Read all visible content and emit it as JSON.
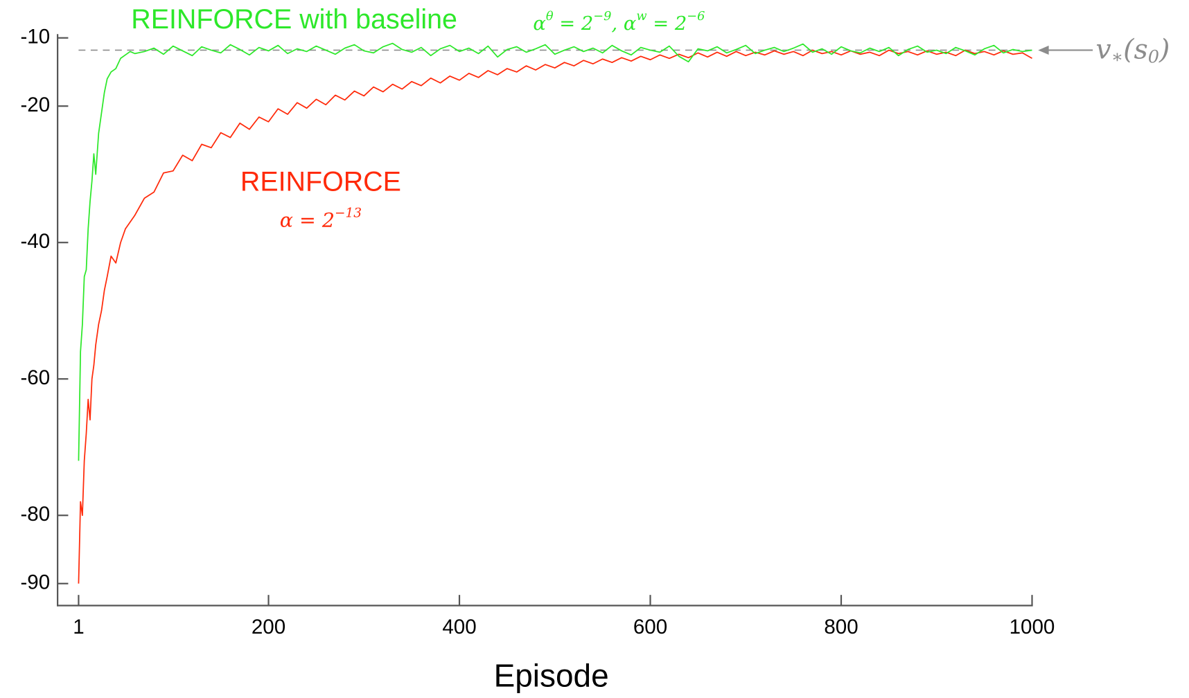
{
  "chart_data": {
    "type": "line",
    "x_label": "Episode",
    "x": [
      1,
      3,
      5,
      7,
      9,
      11,
      13,
      15,
      17,
      19,
      22,
      25,
      28,
      31,
      35,
      40,
      45,
      50,
      55,
      60,
      70,
      80,
      90,
      100,
      110,
      120,
      130,
      140,
      150,
      160,
      170,
      180,
      190,
      200,
      210,
      220,
      230,
      240,
      250,
      260,
      270,
      280,
      290,
      300,
      310,
      320,
      330,
      340,
      350,
      360,
      370,
      380,
      390,
      400,
      410,
      420,
      430,
      440,
      450,
      460,
      470,
      480,
      490,
      500,
      510,
      520,
      530,
      540,
      550,
      560,
      570,
      580,
      590,
      600,
      610,
      620,
      630,
      640,
      650,
      660,
      670,
      680,
      690,
      700,
      710,
      720,
      730,
      740,
      750,
      760,
      770,
      780,
      790,
      800,
      810,
      820,
      830,
      840,
      850,
      860,
      870,
      880,
      890,
      900,
      910,
      920,
      930,
      940,
      950,
      960,
      970,
      980,
      990,
      1000
    ],
    "series": [
      {
        "name": "REINFORCE with baseline",
        "color": "#2de82a",
        "params": [
          "α",
          "θ",
          " = 2",
          "−9",
          ",  α",
          "w",
          " = 2",
          "−6"
        ],
        "values": [
          -72,
          -56,
          -52,
          -45,
          -44,
          -38,
          -34,
          -31,
          -27,
          -30,
          -24,
          -21,
          -18,
          -16,
          -15,
          -14.5,
          -13,
          -12.5,
          -12,
          -12.3,
          -12.0,
          -11.5,
          -12.4,
          -11.2,
          -11.9,
          -12.6,
          -11.3,
          -11.8,
          -12.2,
          -11.0,
          -11.7,
          -12.5,
          -11.4,
          -11.9,
          -11.1,
          -12.3,
          -11.6,
          -12.0,
          -11.2,
          -11.8,
          -12.4,
          -11.5,
          -11.0,
          -11.9,
          -12.2,
          -11.3,
          -10.8,
          -11.7,
          -12.1,
          -11.4,
          -12.6,
          -11.6,
          -11.1,
          -12.0,
          -11.5,
          -12.3,
          -11.2,
          -12.8,
          -11.7,
          -11.3,
          -12.1,
          -11.6,
          -11.0,
          -12.4,
          -11.8,
          -11.3,
          -12.0,
          -11.5,
          -12.2,
          -11.1,
          -11.9,
          -12.5,
          -11.4,
          -11.8,
          -12.1,
          -11.2,
          -12.7,
          -13.5,
          -11.6,
          -11.9,
          -11.3,
          -12.2,
          -11.7,
          -11.1,
          -12.3,
          -11.8,
          -11.4,
          -12.0,
          -11.5,
          -10.9,
          -12.1,
          -11.6,
          -12.4,
          -11.3,
          -11.9,
          -12.2,
          -11.5,
          -12.0,
          -11.4,
          -12.6,
          -11.7,
          -11.2,
          -12.1,
          -11.8,
          -12.3,
          -11.4,
          -11.9,
          -12.5,
          -11.6,
          -11.1,
          -12.2,
          -11.7,
          -12.0,
          -11.8
        ]
      },
      {
        "name": "REINFORCE",
        "color": "#ff2a0a",
        "params": [
          "α = 2",
          "−13"
        ],
        "values": [
          -90,
          -78,
          -80,
          -72,
          -68,
          -63,
          -66,
          -60,
          -58,
          -55,
          -52,
          -50,
          -47,
          -45,
          -42,
          -43,
          -40,
          -38,
          -37,
          -36,
          -33.5,
          -32.6,
          -29.8,
          -29.5,
          -27.2,
          -28.0,
          -25.6,
          -26.1,
          -23.9,
          -24.6,
          -22.5,
          -23.4,
          -21.6,
          -22.3,
          -20.4,
          -21.2,
          -19.5,
          -20.3,
          -19.0,
          -19.8,
          -18.4,
          -19.1,
          -17.8,
          -18.5,
          -17.2,
          -17.9,
          -16.8,
          -17.5,
          -16.4,
          -17.0,
          -15.9,
          -16.6,
          -15.6,
          -16.2,
          -15.2,
          -15.8,
          -14.8,
          -15.4,
          -14.5,
          -15.0,
          -14.1,
          -14.7,
          -13.9,
          -14.4,
          -13.6,
          -14.1,
          -13.3,
          -13.8,
          -13.1,
          -13.6,
          -12.9,
          -13.4,
          -12.7,
          -13.2,
          -12.5,
          -13.0,
          -12.4,
          -12.9,
          -12.2,
          -12.8,
          -12.1,
          -12.7,
          -12.0,
          -12.6,
          -12.1,
          -12.5,
          -11.9,
          -12.4,
          -12.0,
          -12.6,
          -11.8,
          -12.3,
          -12.0,
          -12.5,
          -11.9,
          -12.4,
          -12.1,
          -12.6,
          -11.8,
          -12.3,
          -12.0,
          -12.5,
          -11.9,
          -12.4,
          -12.1,
          -12.6,
          -11.8,
          -12.3,
          -12.0,
          -12.5,
          -11.9,
          -12.4,
          -12.2,
          -13.0
        ]
      }
    ],
    "reference": {
      "value": -11.8,
      "label": [
        "v",
        "∗",
        "(s",
        "0",
        ")"
      ],
      "color": "#8c8c8c"
    },
    "xlim": [
      -21,
      1000
    ],
    "xticks": [
      1,
      200,
      400,
      600,
      800,
      1000
    ],
    "ylim": [
      -93.5,
      -9.5
    ],
    "yticks": [
      -10,
      -20,
      -40,
      -60,
      -80,
      -90
    ]
  }
}
